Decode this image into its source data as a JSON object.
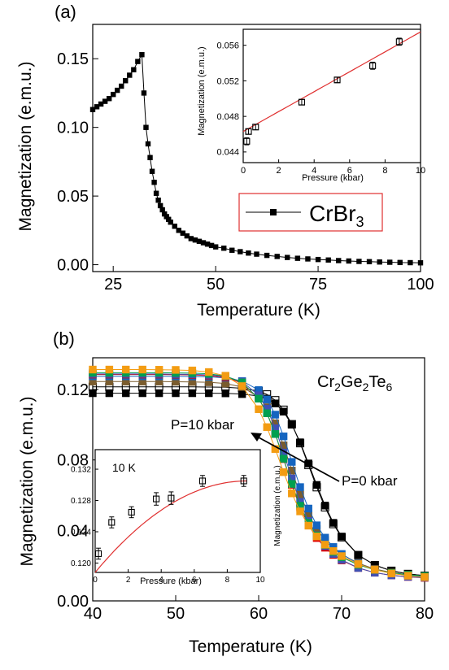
{
  "panels": {
    "a": {
      "label": "(a)",
      "legend": {
        "text": "CrBr",
        "subscript": "3",
        "border_color": "#e03030"
      },
      "main": {
        "xlabel": "Temperature (K)",
        "ylabel": "Magnetization (e.m.u.)",
        "xlim": [
          20,
          100
        ],
        "ylim": [
          -0.005,
          0.175
        ],
        "xticks": [
          25,
          50,
          75,
          100
        ],
        "yticks": [
          0.0,
          0.05,
          0.1,
          0.15
        ],
        "ytick_labels": [
          "0.00",
          "0.05",
          "0.10",
          "0.15"
        ]
      },
      "inset": {
        "xlabel": "Pressure (kbar)",
        "ylabel": "Magnetization (e.m.u.)",
        "xlim": [
          0,
          10
        ],
        "ylim": [
          0.0428,
          0.0578
        ],
        "xticks": [
          0,
          2,
          4,
          6,
          8,
          10
        ],
        "yticks": [
          0.044,
          0.048,
          0.052,
          0.056
        ],
        "ytick_labels": [
          "0.044",
          "0.048",
          "0.052",
          "0.056"
        ]
      }
    },
    "b": {
      "label": "(b)",
      "compound": {
        "parts": [
          "Cr",
          "2",
          "Ge",
          "2",
          "Te",
          "6"
        ]
      },
      "annotations": {
        "high": "P=10 kbar",
        "low": "P=0 kbar"
      },
      "main": {
        "xlabel": "Temperature (K)",
        "ylabel": "Magnetization (e.m.u.)",
        "xlim": [
          40,
          80
        ],
        "ylim": [
          0.0,
          0.138
        ],
        "xticks": [
          40,
          50,
          60,
          70,
          80
        ],
        "yticks": [
          0.0,
          0.04,
          0.08,
          0.12
        ],
        "ytick_labels": [
          "0.00",
          "0.04",
          "0.08",
          "0.12"
        ]
      },
      "inset": {
        "label": "10 K",
        "xlabel": "Pressure (kbar)",
        "ylabel": "Magnetization (e.m.u.)",
        "xlim": [
          0,
          10
        ],
        "ylim": [
          0.1188,
          0.1345
        ],
        "xticks": [
          0,
          2,
          4,
          6,
          8,
          10
        ],
        "yticks": [
          0.12,
          0.124,
          0.128,
          0.132
        ],
        "ytick_labels": [
          "0.120",
          "0.124",
          "0.128",
          "0.132"
        ]
      }
    }
  },
  "chart_data": [
    {
      "type": "line",
      "panel": "a-main",
      "series": [
        {
          "name": "CrBr3",
          "marker": "filled-square",
          "color": "#000000",
          "x": [
            20.0,
            21.0,
            22.0,
            23.0,
            24.0,
            25.0,
            26.0,
            27.0,
            28.0,
            29.0,
            30.0,
            31.0,
            32.0,
            32.5,
            33.0,
            33.5,
            34.0,
            34.5,
            35.0,
            35.5,
            36.0,
            36.5,
            37.0,
            37.5,
            38.0,
            38.5,
            39.0,
            40.0,
            41.0,
            42.0,
            43.0,
            44.0,
            45.0,
            46.0,
            47.0,
            48.0,
            49.0,
            50.0,
            52.0,
            54.0,
            56.0,
            58.0,
            60.0,
            62.5,
            65.0,
            67.5,
            70.0,
            72.5,
            75.0,
            77.5,
            80.0,
            82.5,
            85.0,
            87.5,
            90.0,
            92.5,
            95.0,
            97.5,
            100.0
          ],
          "values": [
            0.113,
            0.115,
            0.117,
            0.119,
            0.121,
            0.124,
            0.127,
            0.13,
            0.134,
            0.138,
            0.142,
            0.148,
            0.153,
            0.125,
            0.1,
            0.088,
            0.078,
            0.068,
            0.06,
            0.052,
            0.047,
            0.043,
            0.04,
            0.037,
            0.035,
            0.033,
            0.031,
            0.028,
            0.025,
            0.023,
            0.021,
            0.019,
            0.018,
            0.017,
            0.016,
            0.015,
            0.014,
            0.013,
            0.012,
            0.0105,
            0.0095,
            0.0085,
            0.0077,
            0.0068,
            0.006,
            0.0053,
            0.0047,
            0.0042,
            0.0038,
            0.0034,
            0.003,
            0.0027,
            0.0024,
            0.0022,
            0.002,
            0.0018,
            0.0016,
            0.0015,
            0.0014
          ]
        }
      ]
    },
    {
      "type": "scatter",
      "panel": "a-inset",
      "series": [
        {
          "marker": "open-square-errorbar",
          "color": "#000000",
          "x": [
            0.2,
            0.3,
            0.7,
            3.3,
            5.3,
            7.3,
            8.8
          ],
          "values": [
            0.0452,
            0.0463,
            0.0468,
            0.0496,
            0.0521,
            0.0537,
            0.0564
          ],
          "yerr": [
            0.0004,
            0.0003,
            0.0003,
            0.0003,
            0.0003,
            0.0004,
            0.0004
          ]
        }
      ],
      "fit": {
        "color": "#e03030",
        "x": [
          0,
          10
        ],
        "values": [
          0.0463,
          0.0575
        ]
      }
    },
    {
      "type": "line",
      "panel": "b-main",
      "series": [
        {
          "color": "#000000",
          "marker": "filled-square",
          "x": [
            40,
            42,
            44,
            46,
            48,
            50,
            52,
            54,
            56,
            58,
            60,
            61,
            62,
            63,
            64,
            65,
            66,
            67,
            68,
            69,
            70,
            72,
            74,
            76,
            78,
            80
          ],
          "values": [
            0.1179,
            0.1179,
            0.1179,
            0.1179,
            0.1179,
            0.1179,
            0.1179,
            0.1179,
            0.1178,
            0.1174,
            0.1163,
            0.1148,
            0.1121,
            0.1074,
            0.1,
            0.09,
            0.078,
            0.0658,
            0.0541,
            0.0443,
            0.0365,
            0.0261,
            0.0203,
            0.0171,
            0.0153,
            0.0143
          ]
        },
        {
          "color": "#000000",
          "marker": "open-square",
          "x": [
            40,
            42,
            44,
            46,
            48,
            50,
            52,
            54,
            56,
            58,
            60,
            61,
            62,
            63,
            64,
            65,
            66,
            67,
            68,
            69,
            70,
            72,
            74,
            76,
            78,
            80
          ],
          "values": [
            0.1215,
            0.1215,
            0.1215,
            0.1215,
            0.1215,
            0.1215,
            0.1215,
            0.1214,
            0.1213,
            0.1207,
            0.1191,
            0.1172,
            0.1139,
            0.1085,
            0.1003,
            0.0895,
            0.0771,
            0.0645,
            0.0531,
            0.0436,
            0.0361,
            0.026,
            0.0203,
            0.0171,
            0.0153,
            0.0143
          ]
        },
        {
          "color": "#7a5c2e",
          "marker": "filled-square",
          "x": [
            40,
            42,
            44,
            46,
            48,
            50,
            52,
            54,
            56,
            58,
            60,
            61,
            62,
            63,
            64,
            65,
            66,
            67,
            68,
            69,
            70,
            72,
            74,
            76,
            78,
            80
          ],
          "values": [
            0.1245,
            0.1245,
            0.1245,
            0.1245,
            0.1245,
            0.1244,
            0.1243,
            0.1241,
            0.1234,
            0.1214,
            0.1157,
            0.1099,
            0.1008,
            0.0883,
            0.074,
            0.0604,
            0.0492,
            0.0407,
            0.0345,
            0.0299,
            0.0264,
            0.0214,
            0.0181,
            0.0161,
            0.0148,
            0.0141
          ]
        },
        {
          "color": "#1565c0",
          "marker": "filled-square",
          "x": [
            40,
            42,
            44,
            46,
            48,
            50,
            52,
            54,
            56,
            58,
            60,
            61,
            62,
            63,
            64,
            65,
            66,
            67,
            68,
            69,
            70,
            72,
            74,
            76,
            78,
            80
          ],
          "values": [
            0.1275,
            0.1275,
            0.1275,
            0.1275,
            0.1275,
            0.1275,
            0.1274,
            0.1272,
            0.1266,
            0.1248,
            0.1197,
            0.1143,
            0.1057,
            0.0934,
            0.0789,
            0.0646,
            0.0524,
            0.0429,
            0.0359,
            0.0306,
            0.0266,
            0.0211,
            0.0177,
            0.0157,
            0.0145,
            0.0138
          ]
        },
        {
          "color": "#e00000",
          "marker": "filled-square",
          "x": [
            40,
            42,
            44,
            46,
            48,
            50,
            52,
            54,
            56,
            58,
            60,
            61,
            62,
            63,
            64,
            65,
            66,
            67,
            68,
            69,
            70,
            72,
            74,
            76,
            78,
            80
          ],
          "values": [
            0.1285,
            0.1285,
            0.1285,
            0.1285,
            0.1285,
            0.1284,
            0.1283,
            0.1279,
            0.1269,
            0.1236,
            0.1149,
            0.1066,
            0.0948,
            0.0805,
            0.0659,
            0.0531,
            0.0431,
            0.0357,
            0.0302,
            0.0261,
            0.023,
            0.0187,
            0.016,
            0.0145,
            0.0136,
            0.0131
          ]
        },
        {
          "color": "#3f51b5",
          "marker": "filled-square",
          "x": [
            40,
            42,
            44,
            46,
            48,
            50,
            52,
            54,
            56,
            58,
            60,
            61,
            62,
            63,
            64,
            65,
            66,
            67,
            68,
            69,
            70,
            72,
            74,
            76,
            78,
            80
          ],
          "values": [
            0.1288,
            0.1288,
            0.1288,
            0.1288,
            0.1288,
            0.1287,
            0.1286,
            0.1283,
            0.1274,
            0.1245,
            0.1167,
            0.1091,
            0.098,
            0.0842,
            0.0695,
            0.0562,
            0.0454,
            0.0372,
            0.0311,
            0.0266,
            0.0233,
            0.0187,
            0.016,
            0.0145,
            0.0137,
            0.0132
          ]
        },
        {
          "color": "#00a050",
          "marker": "filled-square",
          "x": [
            40,
            42,
            44,
            46,
            48,
            50,
            52,
            54,
            56,
            58,
            60,
            61,
            62,
            63,
            64,
            65,
            66,
            67,
            68,
            69,
            70,
            72,
            74,
            76,
            78,
            80
          ],
          "values": [
            0.1295,
            0.1295,
            0.1295,
            0.1295,
            0.1295,
            0.1294,
            0.1293,
            0.1289,
            0.1276,
            0.124,
            0.1148,
            0.1065,
            0.0947,
            0.0807,
            0.0664,
            0.054,
            0.0443,
            0.0371,
            0.0318,
            0.0278,
            0.0248,
            0.0205,
            0.0176,
            0.0159,
            0.0148,
            0.0141
          ]
        },
        {
          "color": "#f39c12",
          "marker": "filled-square",
          "x": [
            40,
            42,
            44,
            46,
            48,
            50,
            52,
            54,
            56,
            58,
            60,
            61,
            62,
            63,
            64,
            65,
            66,
            67,
            68,
            69,
            70,
            72,
            74,
            76,
            78,
            80
          ],
          "values": [
            0.1313,
            0.1313,
            0.1313,
            0.1313,
            0.1312,
            0.1311,
            0.1308,
            0.1299,
            0.1278,
            0.1219,
            0.1088,
            0.0986,
            0.0862,
            0.0731,
            0.061,
            0.0508,
            0.0427,
            0.0366,
            0.0319,
            0.0283,
            0.0254,
            0.0209,
            0.0177,
            0.0156,
            0.0143,
            0.0135
          ]
        }
      ]
    },
    {
      "type": "scatter",
      "panel": "b-inset",
      "series": [
        {
          "marker": "open-square-errorbar",
          "color": "#000000",
          "x": [
            0.2,
            1.0,
            2.2,
            3.7,
            4.6,
            6.5,
            9.0
          ],
          "values": [
            0.1212,
            0.1252,
            0.1265,
            0.1282,
            0.1283,
            0.1305,
            0.1305
          ],
          "yerr": [
            0.0007,
            0.0007,
            0.0007,
            0.0008,
            0.0008,
            0.0007,
            0.0007
          ]
        }
      ],
      "fit": {
        "color": "#e03030",
        "x": [
          0,
          9.2
        ],
        "values": [
          0.1188,
          0.1305
        ]
      }
    }
  ]
}
